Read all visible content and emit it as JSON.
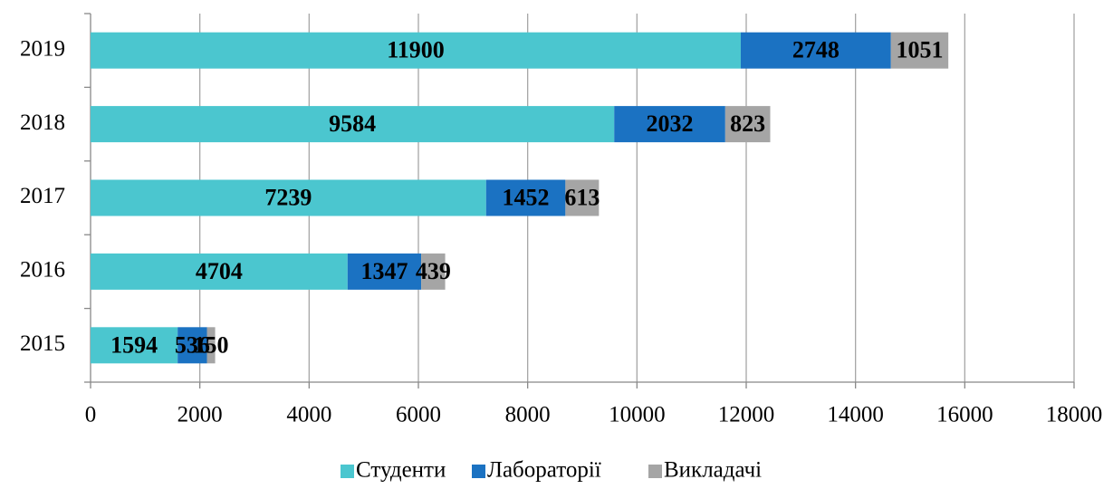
{
  "chart_data": {
    "type": "bar",
    "orientation": "horizontal",
    "stacked": true,
    "categories": [
      "2015",
      "2016",
      "2017",
      "2018",
      "2019"
    ],
    "series": [
      {
        "name": "Студенти",
        "color": "#4bc6cf",
        "values": [
          1594,
          4704,
          7239,
          9584,
          11900
        ]
      },
      {
        "name": "Лабораторії",
        "color": "#1b72c2",
        "values": [
          536,
          1347,
          1452,
          2032,
          2748
        ]
      },
      {
        "name": "Викладачі",
        "color": "#a5a5a5",
        "values": [
          150,
          439,
          613,
          823,
          1051
        ]
      }
    ],
    "xlim": [
      0,
      18000
    ],
    "xticks": [
      0,
      2000,
      4000,
      6000,
      8000,
      10000,
      12000,
      14000,
      16000,
      18000
    ],
    "grid": true,
    "legend": "bottom"
  }
}
